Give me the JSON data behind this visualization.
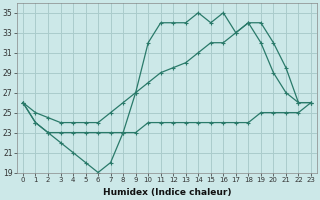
{
  "xlabel": "Humidex (Indice chaleur)",
  "bg_color": "#cce8e8",
  "grid_color": "#aacccc",
  "line_color": "#2a7a6a",
  "xlim": [
    -0.5,
    23.5
  ],
  "ylim": [
    19,
    36
  ],
  "yticks": [
    19,
    21,
    23,
    25,
    27,
    29,
    31,
    33,
    35
  ],
  "xticks": [
    0,
    1,
    2,
    3,
    4,
    5,
    6,
    7,
    8,
    9,
    10,
    11,
    12,
    13,
    14,
    15,
    16,
    17,
    18,
    19,
    20,
    21,
    22,
    23
  ],
  "line_zigzag_x": [
    0,
    1,
    2,
    3,
    4,
    5,
    6,
    7,
    8,
    9,
    10,
    11,
    12,
    13,
    14,
    15,
    16,
    17,
    18,
    19,
    20,
    21,
    22,
    23
  ],
  "line_zigzag_y": [
    26,
    24,
    23,
    22,
    21,
    20,
    19,
    20,
    23,
    27,
    32,
    34,
    34,
    34,
    35,
    34,
    35,
    33,
    34,
    32,
    29,
    27,
    26,
    26
  ],
  "line_diag_x": [
    0,
    1,
    2,
    3,
    4,
    5,
    6,
    7,
    8,
    9,
    10,
    11,
    12,
    13,
    14,
    15,
    16,
    17,
    18,
    19,
    20,
    21,
    22,
    23
  ],
  "line_diag_y": [
    26,
    25,
    24.5,
    24,
    24,
    24,
    24,
    25,
    26,
    27,
    28,
    29,
    29.5,
    30,
    31,
    32,
    32,
    33,
    34,
    34,
    32,
    29.5,
    26,
    26
  ],
  "line_flat_x": [
    0,
    1,
    2,
    3,
    4,
    5,
    6,
    7,
    8,
    9,
    10,
    11,
    12,
    13,
    14,
    15,
    16,
    17,
    18,
    19,
    20,
    21,
    22,
    23
  ],
  "line_flat_y": [
    26,
    24,
    23,
    23,
    23,
    23,
    23,
    23,
    23,
    23,
    24,
    24,
    24,
    24,
    24,
    24,
    24,
    24,
    24,
    25,
    25,
    25,
    25,
    26
  ]
}
